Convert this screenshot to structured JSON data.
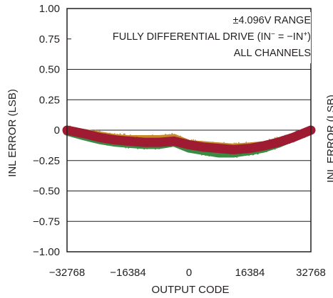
{
  "chart_data": {
    "type": "scatter",
    "title": "",
    "xlabel": "OUTPUT CODE",
    "ylabel": "INL ERROR (LSB)",
    "xlim": [
      -32768,
      32768
    ],
    "ylim": [
      -1.0,
      1.0
    ],
    "x_ticks": [
      -32768,
      -16384,
      0,
      16384,
      32768
    ],
    "x_tick_labels": [
      "−32768",
      "−16384",
      "0",
      "16384",
      "32768"
    ],
    "y_ticks": [
      1.0,
      0.75,
      0.5,
      0.25,
      0,
      -0.25,
      -0.5,
      -0.75,
      -1.0
    ],
    "y_tick_labels": [
      "1.00",
      "0.75",
      "0.50",
      "0.25",
      "0",
      "−0.25",
      "−0.50",
      "−0.75",
      "−1.00"
    ],
    "grid": "horizontal",
    "annotations": [
      "±4.096V RANGE",
      "FULLY DIFFERENTIAL DRIVE (IN",
      "ALL CHANNELS"
    ],
    "annotation_parts": {
      "sup1": "−",
      "mid": " = −IN",
      "sup2": "+",
      "close": ")"
    },
    "adjacent_cut_label": "INL ERROR (LSB)",
    "series": [
      {
        "color": "#2e3d8f",
        "x": [
          -32768,
          -28000,
          -24000,
          -20000,
          -16384,
          -12000,
          -8000,
          -4000,
          0,
          4000,
          8000,
          12000,
          16384,
          20000,
          24000,
          28000,
          32768
        ],
        "y": [
          0,
          -0.03,
          -0.05,
          -0.07,
          -0.08,
          -0.09,
          -0.09,
          -0.08,
          -0.12,
          -0.14,
          -0.15,
          -0.16,
          -0.15,
          -0.13,
          -0.1,
          -0.06,
          0
        ]
      },
      {
        "color": "#3a8b43",
        "x": [
          -32768,
          -28000,
          -24000,
          -20000,
          -16384,
          -12000,
          -8000,
          -4000,
          0,
          4000,
          8000,
          12000,
          16384,
          20000,
          24000,
          28000,
          32768
        ],
        "y": [
          -0.01,
          -0.05,
          -0.08,
          -0.1,
          -0.11,
          -0.12,
          -0.12,
          -0.1,
          -0.15,
          -0.17,
          -0.19,
          -0.19,
          -0.17,
          -0.15,
          -0.11,
          -0.06,
          0
        ]
      },
      {
        "color": "#c98a2b",
        "x": [
          -32768,
          -28000,
          -24000,
          -20000,
          -16384,
          -12000,
          -8000,
          -4000,
          0,
          4000,
          8000,
          12000,
          16384,
          20000,
          24000,
          28000,
          32768
        ],
        "y": [
          0,
          -0.02,
          -0.04,
          -0.06,
          -0.07,
          -0.07,
          -0.07,
          -0.06,
          -0.11,
          -0.12,
          -0.13,
          -0.14,
          -0.13,
          -0.12,
          -0.09,
          -0.05,
          0
        ]
      },
      {
        "color": "#9e1b32",
        "x": [
          -32768,
          -28000,
          -24000,
          -20000,
          -16384,
          -12000,
          -8000,
          -4000,
          0,
          4000,
          8000,
          12000,
          16384,
          20000,
          24000,
          28000,
          32768
        ],
        "y": [
          0,
          -0.03,
          -0.06,
          -0.08,
          -0.09,
          -0.1,
          -0.1,
          -0.09,
          -0.12,
          -0.14,
          -0.15,
          -0.16,
          -0.15,
          -0.13,
          -0.1,
          -0.06,
          0
        ]
      }
    ]
  }
}
